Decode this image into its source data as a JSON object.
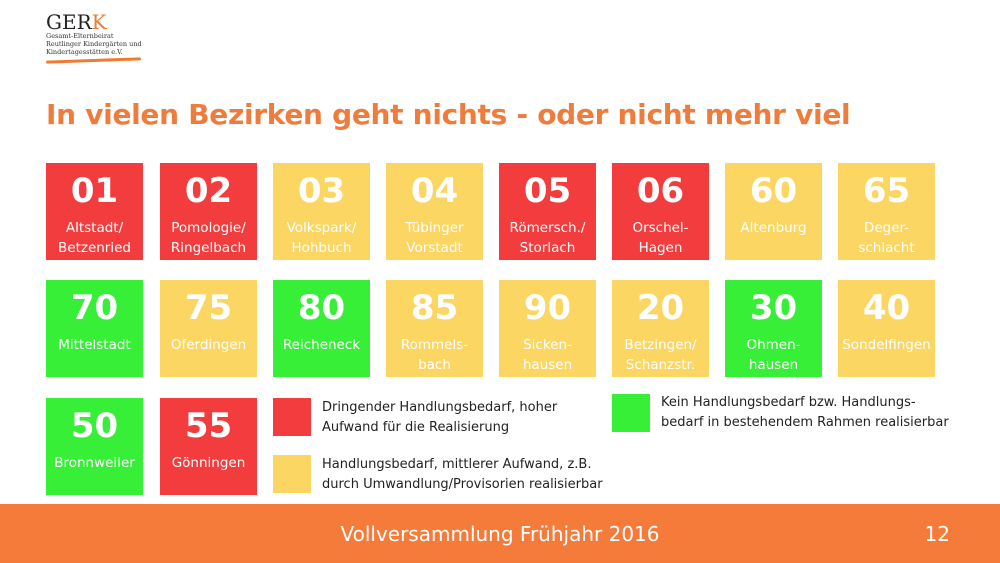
{
  "logo": {
    "name": "GERK",
    "line1": "Gesamt-Elternbeirat",
    "line2": "Reutlinger Kindergärten und",
    "line3": "Kindertagesstätten e.V."
  },
  "title": "In vielen Bezirken geht  nichts - oder nicht mehr viel",
  "colors": {
    "red": "#f23c3e",
    "yellow": "#fcd663",
    "green": "#37ef37",
    "orange": "#f47b3a"
  },
  "districts": [
    {
      "num": "01",
      "name1": "Altstadt/",
      "name2": "Betzenried",
      "status": "red"
    },
    {
      "num": "02",
      "name1": "Pomologie/",
      "name2": "Ringelbach",
      "status": "red"
    },
    {
      "num": "03",
      "name1": "Volkspark/",
      "name2": "Hohbuch",
      "status": "yellow"
    },
    {
      "num": "04",
      "name1": "Tübinger",
      "name2": "Vorstadt",
      "status": "yellow"
    },
    {
      "num": "05",
      "name1": "Römersch./",
      "name2": "Storlach",
      "status": "red"
    },
    {
      "num": "06",
      "name1": "Orschel-",
      "name2": "Hagen",
      "status": "red"
    },
    {
      "num": "60",
      "name1": "Altenburg",
      "name2": "",
      "status": "yellow"
    },
    {
      "num": "65",
      "name1": "Deger-",
      "name2": "schlacht",
      "status": "yellow"
    },
    {
      "num": "70",
      "name1": "Mittelstadt",
      "name2": "",
      "status": "green"
    },
    {
      "num": "75",
      "name1": "Oferdingen",
      "name2": "",
      "status": "yellow"
    },
    {
      "num": "80",
      "name1": "Reicheneck",
      "name2": "",
      "status": "green"
    },
    {
      "num": "85",
      "name1": "Rommels-",
      "name2": "bach",
      "status": "yellow"
    },
    {
      "num": "90",
      "name1": "Sicken-",
      "name2": "hausen",
      "status": "yellow"
    },
    {
      "num": "20",
      "name1": "Betzingen/",
      "name2": "Schanzstr.",
      "status": "yellow"
    },
    {
      "num": "30",
      "name1": "Ohmen-",
      "name2": "hausen",
      "status": "green"
    },
    {
      "num": "40",
      "name1": "Sondelfingen",
      "name2": "",
      "status": "yellow"
    },
    {
      "num": "50",
      "name1": "Bronnweiler",
      "name2": "",
      "status": "green"
    },
    {
      "num": "55",
      "name1": "Gönningen",
      "name2": "",
      "status": "red"
    }
  ],
  "legend": {
    "red": {
      "line1": "Dringender Handlungsbedarf, hoher",
      "line2": "Aufwand für die Realisierung"
    },
    "yellow": {
      "line1": "Handlungsbedarf, mittlerer Aufwand, z.B.",
      "line2": "durch Umwandlung/Provisorien realisierbar"
    },
    "green": {
      "line1": "Kein Handlungsbedarf bzw. Handlungs-",
      "line2": "bedarf in bestehendem Rahmen realisierbar"
    }
  },
  "footer": {
    "text": "Vollversammlung Frühjahr 2016",
    "page": "12"
  }
}
